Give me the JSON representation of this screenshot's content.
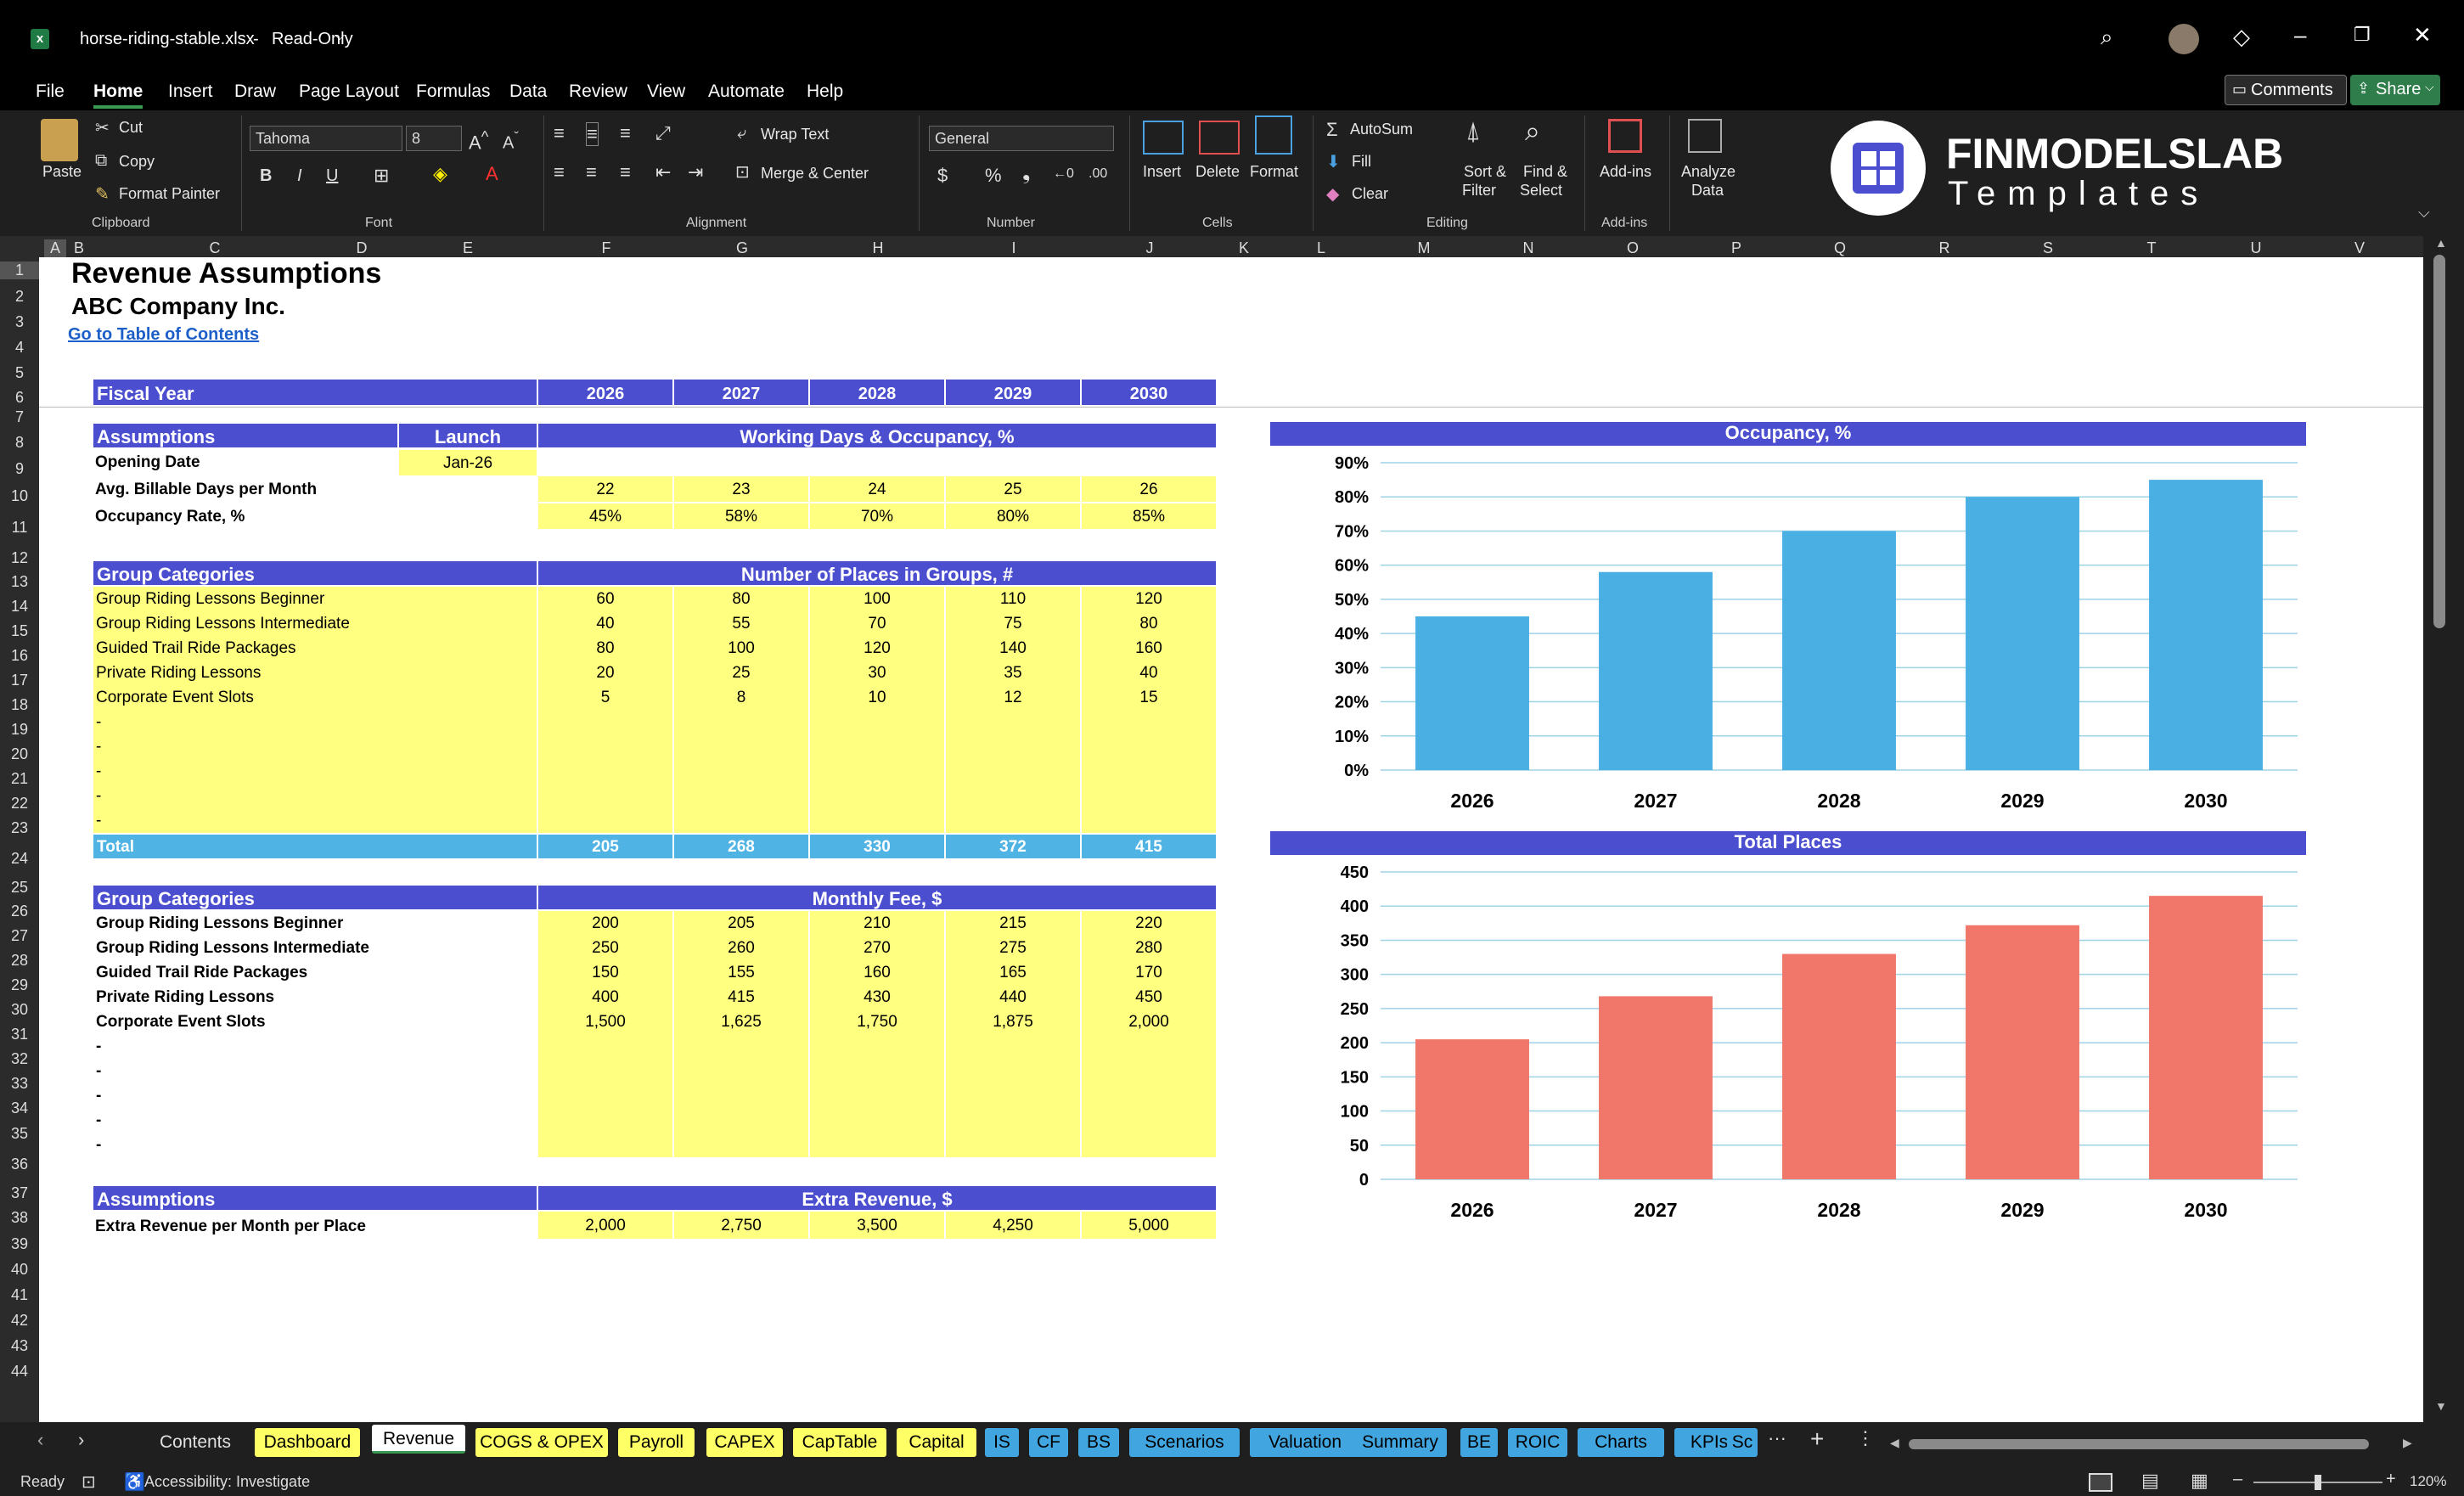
{
  "window": {
    "filename": "horse-riding-stable.xlsx",
    "mode": "Read-Only"
  },
  "menu": [
    "File",
    "Home",
    "Insert",
    "Draw",
    "Page Layout",
    "Formulas",
    "Data",
    "Review",
    "View",
    "Automate",
    "Help"
  ],
  "menu_right": {
    "comments": "Comments",
    "share": "Share"
  },
  "ribbon": {
    "paste": "Paste",
    "cut": "Cut",
    "copy": "Copy",
    "format_painter": "Format Painter",
    "clipboard": "Clipboard",
    "font_name": "Tahoma",
    "font_size": "8",
    "font": "Font",
    "wrap_text": "Wrap Text",
    "merge_center": "Merge & Center",
    "alignment": "Alignment",
    "number_format": "General",
    "number": "Number",
    "insert": "Insert",
    "delete": "Delete",
    "format": "Format",
    "cells": "Cells",
    "autosum": "AutoSum",
    "fill": "Fill",
    "clear": "Clear",
    "sort_filter_1": "Sort &",
    "sort_filter_2": "Filter",
    "find_select_1": "Find &",
    "find_select_2": "Select",
    "editing": "Editing",
    "addins": "Add-ins",
    "addins_group": "Add-ins",
    "analyze_1": "Analyze",
    "analyze_2": "Data",
    "logo_line1": "FINMODELSLAB",
    "logo_line2": "Templates"
  },
  "columns": [
    "A",
    "B",
    "C",
    "D",
    "E",
    "F",
    "G",
    "H",
    "I",
    "J",
    "K",
    "L",
    "M",
    "N",
    "O",
    "P",
    "Q",
    "R",
    "S",
    "T",
    "U",
    "V"
  ],
  "sheet": {
    "title": "Revenue Assumptions",
    "company": "ABC Company Inc.",
    "toc_link": "Go to Table of Contents",
    "fiscal_year_label": "Fiscal Year",
    "years": [
      "2026",
      "2027",
      "2028",
      "2029",
      "2030"
    ],
    "assumptions": {
      "label": "Assumptions",
      "launch": "Launch",
      "header": "Working Days & Occupancy, %",
      "opening_date_label": "Opening Date",
      "opening_date": "Jan-26",
      "billable_label": "Avg. Billable Days per Month",
      "billable": [
        "22",
        "23",
        "24",
        "25",
        "26"
      ],
      "occupancy_label": "Occupancy Rate, %",
      "occupancy": [
        "45%",
        "58%",
        "70%",
        "80%",
        "85%"
      ]
    },
    "places": {
      "label": "Group Categories",
      "header": "Number of Places in Groups, #",
      "rows": [
        {
          "name": "Group Riding Lessons Beginner",
          "values": [
            "60",
            "80",
            "100",
            "110",
            "120"
          ]
        },
        {
          "name": "Group Riding Lessons Intermediate",
          "values": [
            "40",
            "55",
            "70",
            "75",
            "80"
          ]
        },
        {
          "name": "Guided Trail Ride Packages",
          "values": [
            "80",
            "100",
            "120",
            "140",
            "160"
          ]
        },
        {
          "name": "Private Riding Lessons",
          "values": [
            "20",
            "25",
            "30",
            "35",
            "40"
          ]
        },
        {
          "name": "Corporate Event Slots",
          "values": [
            "5",
            "8",
            "10",
            "12",
            "15"
          ]
        },
        {
          "name": "-",
          "values": [
            "",
            "",
            "",
            "",
            ""
          ]
        },
        {
          "name": "-",
          "values": [
            "",
            "",
            "",
            "",
            ""
          ]
        },
        {
          "name": "-",
          "values": [
            "",
            "",
            "",
            "",
            ""
          ]
        },
        {
          "name": "-",
          "values": [
            "",
            "",
            "",
            "",
            ""
          ]
        },
        {
          "name": "-",
          "values": [
            "",
            "",
            "",
            "",
            ""
          ]
        }
      ],
      "total_label": "Total",
      "total": [
        "205",
        "268",
        "330",
        "372",
        "415"
      ]
    },
    "fees": {
      "label": "Group Categories",
      "header": "Monthly Fee, $",
      "rows": [
        {
          "name": "Group Riding Lessons Beginner",
          "values": [
            "200",
            "205",
            "210",
            "215",
            "220"
          ]
        },
        {
          "name": "Group Riding Lessons Intermediate",
          "values": [
            "250",
            "260",
            "270",
            "275",
            "280"
          ]
        },
        {
          "name": "Guided Trail Ride Packages",
          "values": [
            "150",
            "155",
            "160",
            "165",
            "170"
          ]
        },
        {
          "name": "Private Riding Lessons",
          "values": [
            "400",
            "415",
            "430",
            "440",
            "450"
          ]
        },
        {
          "name": "Corporate Event Slots",
          "values": [
            "1,500",
            "1,625",
            "1,750",
            "1,875",
            "2,000"
          ]
        },
        {
          "name": "-",
          "values": [
            "",
            "",
            "",
            "",
            ""
          ]
        },
        {
          "name": "-",
          "values": [
            "",
            "",
            "",
            "",
            ""
          ]
        },
        {
          "name": "-",
          "values": [
            "",
            "",
            "",
            "",
            ""
          ]
        },
        {
          "name": "-",
          "values": [
            "",
            "",
            "",
            "",
            ""
          ]
        },
        {
          "name": "-",
          "values": [
            "",
            "",
            "",
            "",
            ""
          ]
        }
      ]
    },
    "extra": {
      "label": "Assumptions",
      "header": "Extra Revenue, $",
      "row_label": "Extra Revenue per Month per Place",
      "values": [
        "2,000",
        "2,750",
        "3,500",
        "4,250",
        "5,000"
      ]
    }
  },
  "chart_data": [
    {
      "type": "bar",
      "title": "Occupancy, %",
      "categories": [
        "2026",
        "2027",
        "2028",
        "2029",
        "2030"
      ],
      "values": [
        45,
        58,
        70,
        80,
        85
      ],
      "ylim": [
        0,
        90
      ],
      "yticks": [
        "0%",
        "10%",
        "20%",
        "30%",
        "40%",
        "50%",
        "60%",
        "70%",
        "80%",
        "90%"
      ],
      "color": "#4ab0e4",
      "grid": true
    },
    {
      "type": "bar",
      "title": "Total Places",
      "categories": [
        "2026",
        "2027",
        "2028",
        "2029",
        "2030"
      ],
      "values": [
        205,
        268,
        330,
        372,
        415
      ],
      "ylim": [
        0,
        450
      ],
      "yticks": [
        "0",
        "50",
        "100",
        "150",
        "200",
        "250",
        "300",
        "350",
        "400",
        "450"
      ],
      "color": "#f0776a",
      "grid": true
    }
  ],
  "tabs": [
    {
      "label": "Contents",
      "style": "c"
    },
    {
      "label": "Dashboard",
      "style": "y"
    },
    {
      "label": "Revenue",
      "style": "active"
    },
    {
      "label": "COGS & OPEX",
      "style": "y"
    },
    {
      "label": "Payroll",
      "style": "y"
    },
    {
      "label": "CAPEX",
      "style": "y"
    },
    {
      "label": "CapTable",
      "style": "y"
    },
    {
      "label": "Capital",
      "style": "y"
    },
    {
      "label": "IS",
      "style": "b"
    },
    {
      "label": "CF",
      "style": "b"
    },
    {
      "label": "BS",
      "style": "b"
    },
    {
      "label": "Scenarios",
      "style": "b"
    },
    {
      "label": "Valuation",
      "style": "b"
    },
    {
      "label": "Summary",
      "style": "b"
    },
    {
      "label": "BE",
      "style": "b"
    },
    {
      "label": "ROIC",
      "style": "b"
    },
    {
      "label": "Charts",
      "style": "b"
    },
    {
      "label": "KPIs",
      "style": "b"
    },
    {
      "label": "Sc",
      "style": "b"
    }
  ],
  "status": {
    "ready": "Ready",
    "accessibility": "Accessibility: Investigate",
    "zoom": "120%"
  }
}
